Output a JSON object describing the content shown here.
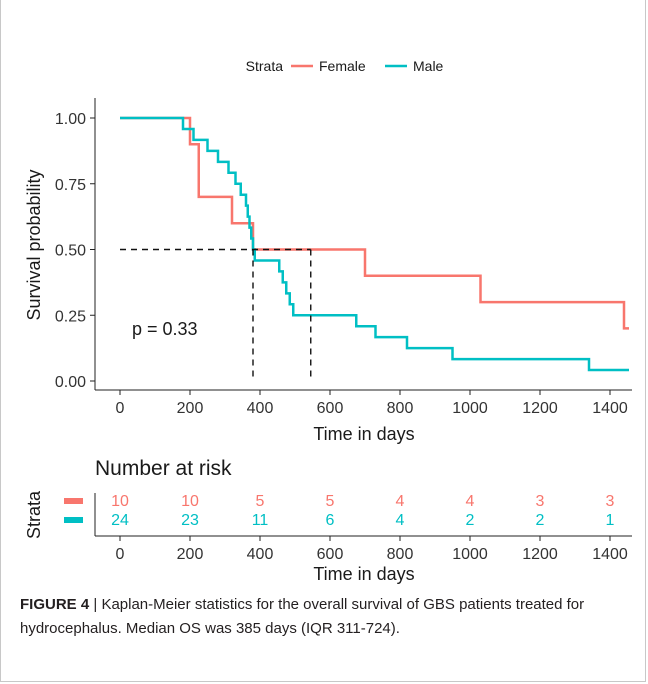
{
  "chart_data": [
    {
      "type": "line",
      "subtype": "kaplan-meier",
      "legend": {
        "title": "Strata",
        "position": "top",
        "entries": [
          "Female",
          "Male"
        ]
      },
      "xlabel": "Time in days",
      "ylabel": "Survival probability",
      "xlim": [
        -50,
        1460
      ],
      "ylim": [
        0,
        1.05
      ],
      "x_ticks": [
        "0",
        "200",
        "400",
        "600",
        "800",
        "1000",
        "1200",
        "1400"
      ],
      "y_ticks": [
        "0.00",
        "0.25",
        "0.50",
        "0.75",
        "1.00"
      ],
      "annotation": "p = 0.33",
      "median_lines": [
        {
          "x": 380,
          "y": 0.5
        },
        {
          "x": 545,
          "y": 0.5
        }
      ],
      "series": [
        {
          "name": "Female",
          "color": "#F8766D",
          "steps": [
            [
              0,
              1.0
            ],
            [
              200,
              0.9
            ],
            [
              225,
              0.7
            ],
            [
              320,
              0.6
            ],
            [
              380,
              0.5
            ],
            [
              700,
              0.4
            ],
            [
              1030,
              0.3
            ],
            [
              1440,
              0.2
            ],
            [
              1460,
              0.2
            ]
          ]
        },
        {
          "name": "Male",
          "color": "#00BFC4",
          "steps": [
            [
              0,
              1.0
            ],
            [
              180,
              0.958
            ],
            [
              210,
              0.917
            ],
            [
              250,
              0.875
            ],
            [
              280,
              0.833
            ],
            [
              310,
              0.792
            ],
            [
              330,
              0.75
            ],
            [
              345,
              0.708
            ],
            [
              360,
              0.667
            ],
            [
              365,
              0.625
            ],
            [
              370,
              0.583
            ],
            [
              375,
              0.542
            ],
            [
              380,
              0.5
            ],
            [
              385,
              0.458
            ],
            [
              455,
              0.417
            ],
            [
              465,
              0.375
            ],
            [
              475,
              0.333
            ],
            [
              485,
              0.292
            ],
            [
              495,
              0.25
            ],
            [
              675,
              0.208
            ],
            [
              730,
              0.167
            ],
            [
              820,
              0.125
            ],
            [
              950,
              0.083
            ],
            [
              1340,
              0.042
            ],
            [
              1460,
              0.042
            ]
          ]
        }
      ]
    },
    {
      "type": "table",
      "title": "Number at risk",
      "ylabel": "Strata",
      "xlabel": "Time in days",
      "x_ticks": [
        "0",
        "200",
        "400",
        "600",
        "800",
        "1000",
        "1200",
        "1400"
      ],
      "times": [
        0,
        200,
        400,
        600,
        800,
        1000,
        1200,
        1400
      ],
      "rows": [
        {
          "name": "Female",
          "color": "#F8766D",
          "values": [
            "10",
            "10",
            "5",
            "5",
            "4",
            "4",
            "3",
            "3"
          ]
        },
        {
          "name": "Male",
          "color": "#00BFC4",
          "values": [
            "24",
            "23",
            "11",
            "6",
            "4",
            "2",
            "2",
            "1"
          ]
        }
      ]
    }
  ],
  "caption": {
    "label": "FIGURE 4",
    "separator": "|",
    "text": "Kaplan-Meier statistics for the overall survival of GBS patients treated for hydrocephalus. Median OS was 385 days (IQR 311-724)."
  }
}
